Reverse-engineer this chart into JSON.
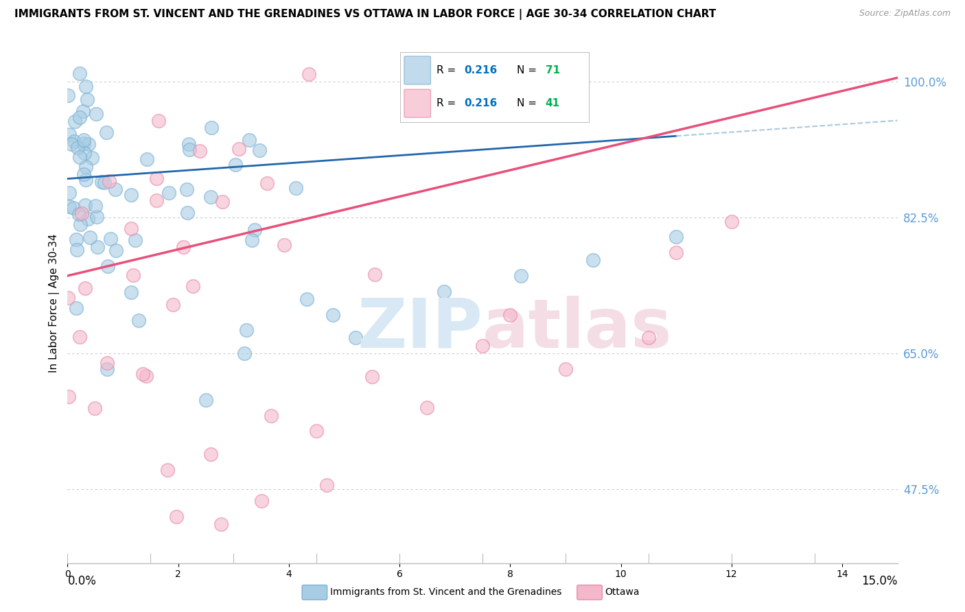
{
  "title": "IMMIGRANTS FROM ST. VINCENT AND THE GRENADINES VS OTTAWA IN LABOR FORCE | AGE 30-34 CORRELATION CHART",
  "source": "Source: ZipAtlas.com",
  "ylabel": "In Labor Force | Age 30-34",
  "y_ticks": [
    47.5,
    65.0,
    82.5,
    100.0
  ],
  "x_min": 0.0,
  "x_max": 15.0,
  "y_min": 38.0,
  "y_max": 105.0,
  "series1_label": "Immigrants from St. Vincent and the Grenadines",
  "series1_R": "0.216",
  "series1_N": "71",
  "series1_color": "#a8cce4",
  "series1_edge_color": "#7ab0d4",
  "series1_line_color": "#2166ac",
  "series1_dash_color": "#aac8e0",
  "series2_label": "Ottawa",
  "series2_R": "0.216",
  "series2_N": "41",
  "series2_color": "#f4b8cb",
  "series2_edge_color": "#e88aab",
  "series2_line_color": "#e84f7a",
  "legend_R_color": "#0070c0",
  "legend_N_color": "#00b050",
  "background_color": "#ffffff",
  "blue_line_x0": 0.0,
  "blue_line_y0": 87.5,
  "blue_line_x1": 15.0,
  "blue_line_y1": 95.0,
  "pink_line_x0": 0.0,
  "pink_line_y0": 75.0,
  "pink_line_x1": 15.0,
  "pink_line_y1": 100.5
}
